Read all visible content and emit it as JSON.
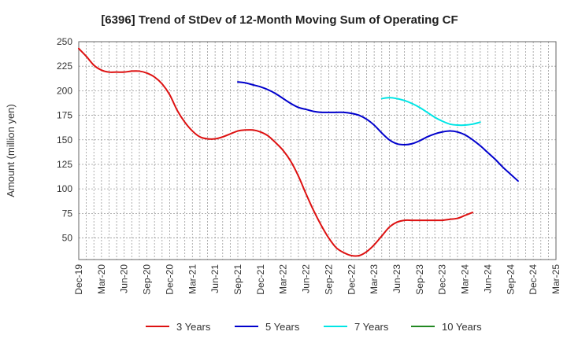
{
  "chart_data": {
    "type": "line",
    "title": "[6396]  Trend of StDev of 12-Month Moving Sum of Operating CF",
    "ylabel": "Amount (million yen)",
    "xlabel": "",
    "ylim": [
      28,
      250
    ],
    "yticks": [
      50,
      75,
      100,
      125,
      150,
      175,
      200,
      225,
      250
    ],
    "x_categories": [
      "Dec-19",
      "Mar-20",
      "Jun-20",
      "Sep-20",
      "Dec-20",
      "Mar-21",
      "Jun-21",
      "Sep-21",
      "Dec-21",
      "Mar-22",
      "Jun-22",
      "Sep-22",
      "Dec-22",
      "Mar-23",
      "Jun-23",
      "Sep-23",
      "Dec-23",
      "Mar-24",
      "Jun-24",
      "Sep-24",
      "Dec-24",
      "Mar-25"
    ],
    "grid": true,
    "legend_position": "bottom",
    "series": [
      {
        "name": "3 Years",
        "color": "#dd1111",
        "points": [
          [
            0,
            243
          ],
          [
            1,
            235
          ],
          [
            2,
            226
          ],
          [
            3,
            221
          ],
          [
            4,
            219
          ],
          [
            5,
            219
          ],
          [
            6,
            219
          ],
          [
            7,
            220
          ],
          [
            8,
            220
          ],
          [
            9,
            218
          ],
          [
            10,
            214
          ],
          [
            11,
            207
          ],
          [
            12,
            196
          ],
          [
            13,
            180
          ],
          [
            14,
            168
          ],
          [
            15,
            159
          ],
          [
            16,
            153
          ],
          [
            17,
            151
          ],
          [
            18,
            151
          ],
          [
            19,
            153
          ],
          [
            20,
            156
          ],
          [
            21,
            159
          ],
          [
            22,
            160
          ],
          [
            23,
            160
          ],
          [
            24,
            158
          ],
          [
            25,
            154
          ],
          [
            26,
            147
          ],
          [
            27,
            139
          ],
          [
            28,
            128
          ],
          [
            29,
            113
          ],
          [
            30,
            95
          ],
          [
            31,
            78
          ],
          [
            32,
            63
          ],
          [
            33,
            50
          ],
          [
            34,
            40
          ],
          [
            35,
            35
          ],
          [
            36,
            32
          ],
          [
            37,
            32
          ],
          [
            38,
            36
          ],
          [
            39,
            43
          ],
          [
            40,
            52
          ],
          [
            41,
            61
          ],
          [
            42,
            66
          ],
          [
            43,
            68
          ],
          [
            44,
            68
          ],
          [
            45,
            68
          ],
          [
            46,
            68
          ],
          [
            47,
            68
          ],
          [
            48,
            68
          ],
          [
            49,
            69
          ],
          [
            50,
            70
          ],
          [
            51,
            73
          ],
          [
            52,
            76
          ]
        ]
      },
      {
        "name": "5 Years",
        "color": "#0000cc",
        "points": [
          [
            21,
            209
          ],
          [
            22,
            208
          ],
          [
            23,
            206
          ],
          [
            24,
            204
          ],
          [
            25,
            201
          ],
          [
            26,
            197
          ],
          [
            27,
            192
          ],
          [
            28,
            187
          ],
          [
            29,
            183
          ],
          [
            30,
            181
          ],
          [
            31,
            179
          ],
          [
            32,
            178
          ],
          [
            33,
            178
          ],
          [
            34,
            178
          ],
          [
            35,
            178
          ],
          [
            36,
            177
          ],
          [
            37,
            175
          ],
          [
            38,
            171
          ],
          [
            39,
            165
          ],
          [
            40,
            157
          ],
          [
            41,
            150
          ],
          [
            42,
            146
          ],
          [
            43,
            145
          ],
          [
            44,
            146
          ],
          [
            45,
            149
          ],
          [
            46,
            153
          ],
          [
            47,
            156
          ],
          [
            48,
            158
          ],
          [
            49,
            159
          ],
          [
            50,
            158
          ],
          [
            51,
            155
          ],
          [
            52,
            150
          ],
          [
            53,
            144
          ],
          [
            54,
            137
          ],
          [
            55,
            130
          ],
          [
            56,
            122
          ],
          [
            57,
            115
          ],
          [
            58,
            108
          ]
        ]
      },
      {
        "name": "7 Years",
        "color": "#00e5e5",
        "points": [
          [
            40,
            192
          ],
          [
            41,
            193
          ],
          [
            42,
            192
          ],
          [
            43,
            190
          ],
          [
            44,
            187
          ],
          [
            45,
            183
          ],
          [
            46,
            178
          ],
          [
            47,
            173
          ],
          [
            48,
            169
          ],
          [
            49,
            166
          ],
          [
            50,
            165
          ],
          [
            51,
            165
          ],
          [
            52,
            166
          ],
          [
            53,
            168
          ]
        ]
      },
      {
        "name": "10 Years",
        "color": "#228822",
        "points": []
      }
    ]
  }
}
